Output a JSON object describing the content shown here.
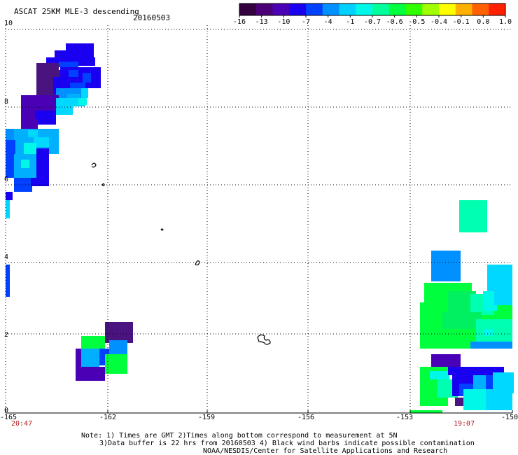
{
  "title": {
    "product": "ASCAT 25KM MLE-3 descending",
    "date": "20160503"
  },
  "colorbar": {
    "colors": [
      "#34003f",
      "#4c0078",
      "#4a00b4",
      "#1a00f0",
      "#0040ff",
      "#0090ff",
      "#00d0ff",
      "#00f8e8",
      "#00ff9c",
      "#00ff3c",
      "#30ff00",
      "#a0ff00",
      "#ffff00",
      "#ffb000",
      "#ff6000",
      "#ff2000"
    ],
    "tick_labels": [
      "-16",
      "-13",
      "-10",
      "-7",
      "-4",
      "-1",
      "-0.7",
      "-0.6",
      "-0.5",
      "-0.4",
      "-0.1",
      "0.0",
      "1.0"
    ]
  },
  "axes": {
    "y_ticks": [
      "10",
      "8",
      "6",
      "4",
      "2",
      "0"
    ],
    "x_ticks": [
      "-165",
      "-162",
      "-159",
      "-156",
      "-153",
      "-150"
    ],
    "grid": "dotted"
  },
  "time_labels": {
    "left": "20:47",
    "right": "19:07"
  },
  "notes": {
    "line1": "Note: 1) Times are GMT 2)Times along bottom correspond to measurement at 5N",
    "line2": "3)Data buffer is 22 hrs from 20160503 4) Black wind barbs indicate possible contamination",
    "line3": "NOAA/NESDIS/Center for Satellite Applications and Research"
  }
}
